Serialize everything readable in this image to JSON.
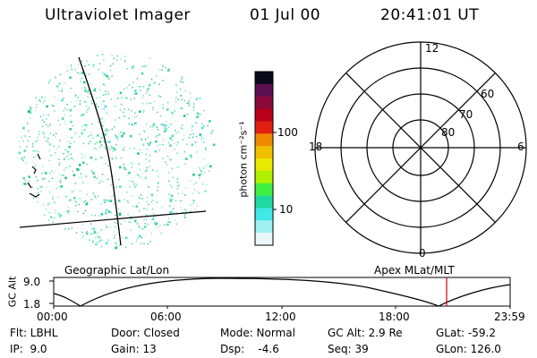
{
  "header": {
    "title": "Ultraviolet Imager",
    "date": "01 Jul 00",
    "time": "20:41:01 UT"
  },
  "image_panel": {
    "caption": "Geographic Lat/Lon",
    "speckle_color": "#3ecf8e"
  },
  "colorbar": {
    "unit_label": "photon cm⁻²s⁻¹",
    "tick_labels": [
      "100",
      "10"
    ],
    "colors": [
      "#0a0a1a",
      "#5a1050",
      "#8a0a3a",
      "#b8001a",
      "#e02010",
      "#f08a00",
      "#f0c000",
      "#e8e800",
      "#b0f000",
      "#40f040",
      "#20d8a0",
      "#40e8e8",
      "#a0f0f0",
      "#e8f8f8"
    ]
  },
  "polar_panel": {
    "caption": "Apex MLat/MLT",
    "mlt_labels": {
      "top": "12",
      "left": "18",
      "right": "6",
      "bottom": "0"
    },
    "mlat_labels": [
      "60",
      "70",
      "80"
    ]
  },
  "altitude_strip": {
    "axis_label": "GC Alt",
    "ticks": [
      "9.0",
      "1.8"
    ],
    "time_ticks": [
      "00:00",
      "06:00",
      "12:00",
      "18:00",
      "23:59"
    ],
    "marker_color": "#cc0000"
  },
  "info": {
    "flt": "Flt: LBHL",
    "ip": "IP:  9.0",
    "door": "Door: Closed",
    "gain": "Gain: 13",
    "mode": "Mode: Normal",
    "dsp": "Dsp:    -4.6",
    "gc_alt": "GC Alt: 2.9 Re",
    "seq": "Seq: 39",
    "glat": "GLat: -59.2",
    "glon": "GLon: 126.0"
  }
}
